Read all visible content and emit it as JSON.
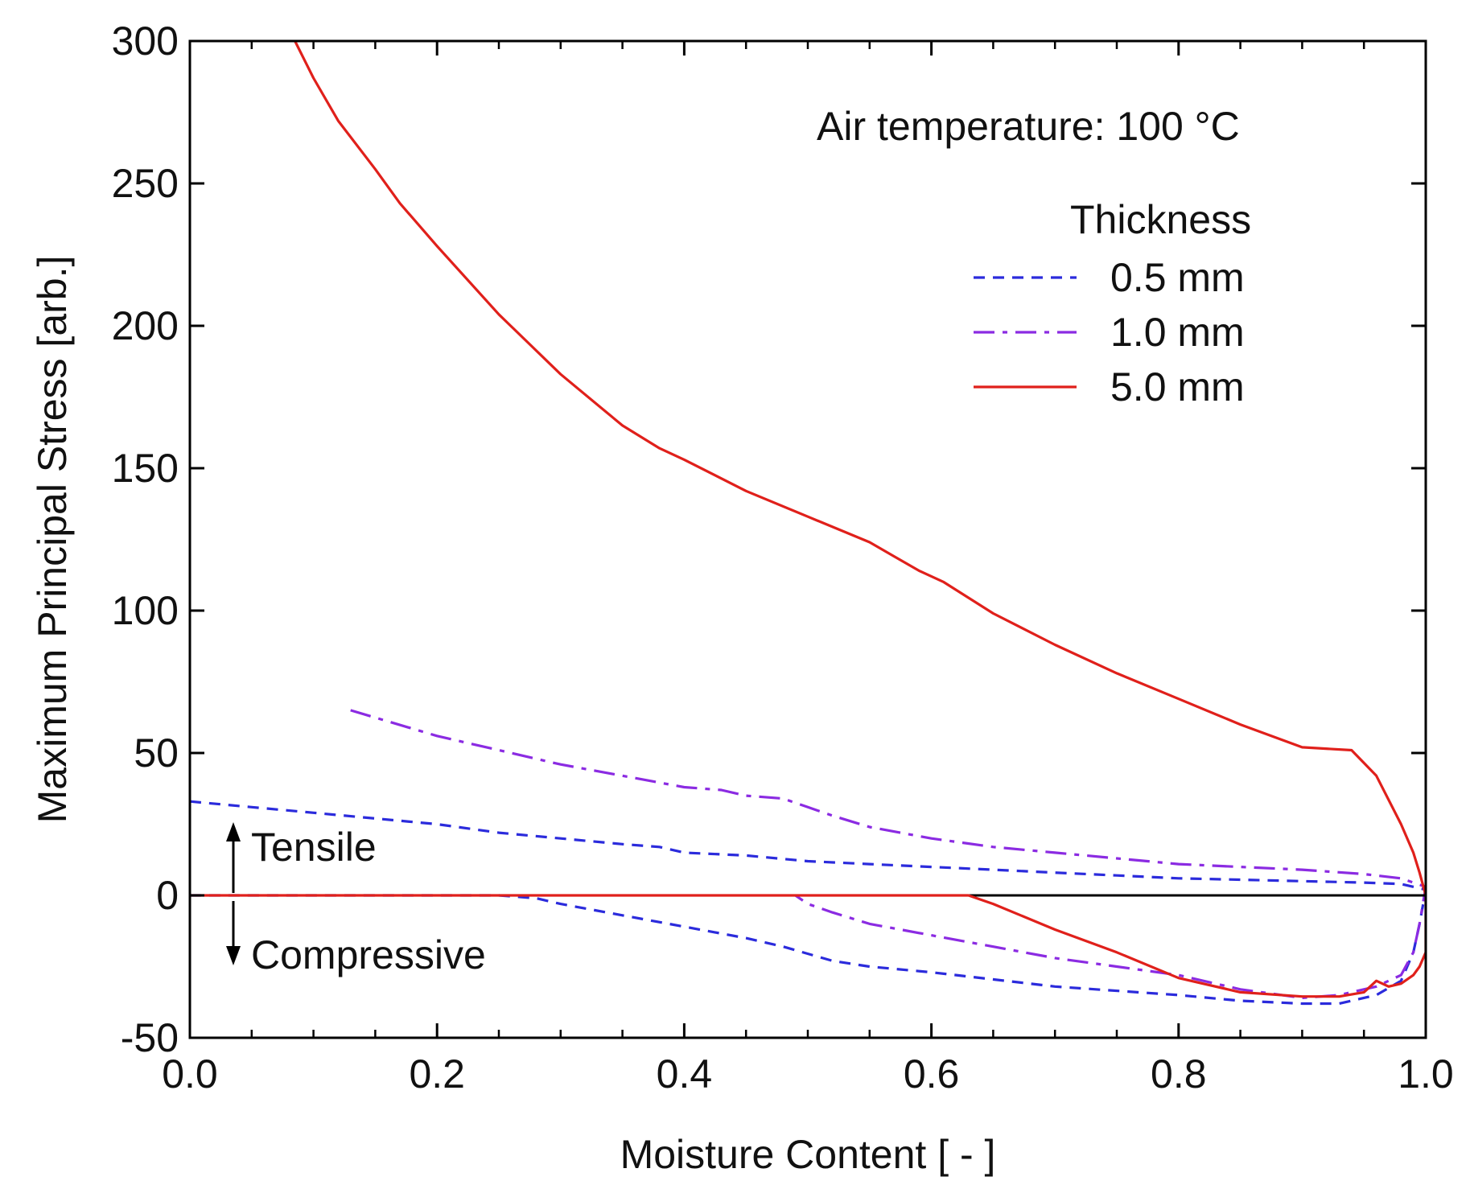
{
  "chart_data": {
    "type": "line",
    "title": "",
    "xlabel": "Moisture Content  [ - ]",
    "ylabel": "Maximum Principal Stress  [arb.]",
    "xlim": [
      0.0,
      1.0
    ],
    "ylim": [
      -50,
      300
    ],
    "xticks": [
      0.0,
      0.2,
      0.4,
      0.6,
      0.8,
      1.0
    ],
    "xtick_labels": [
      "0.0",
      "0.2",
      "0.4",
      "0.6",
      "0.8",
      "1.0"
    ],
    "yticks": [
      -50,
      0,
      50,
      100,
      150,
      200,
      250,
      300
    ],
    "ytick_labels": [
      "-50",
      "0",
      "50",
      "100",
      "150",
      "200",
      "250",
      "300"
    ],
    "grid": false,
    "annotations": {
      "condition": "Air temperature: 100 °C",
      "tensile": "Tensile",
      "compressive": "Compressive"
    },
    "legend": {
      "title": "Thickness",
      "placement": "top-right"
    },
    "series": [
      {
        "name": "0.5 mm",
        "color": "#2b2bdc",
        "dash": "dashed",
        "x": [
          0.0,
          0.05,
          0.1,
          0.15,
          0.2,
          0.25,
          0.3,
          0.35,
          0.38,
          0.4,
          0.45,
          0.5,
          0.55,
          0.6,
          0.65,
          0.7,
          0.75,
          0.8,
          0.85,
          0.9,
          0.95,
          0.98,
          1.0,
          0.995,
          0.99,
          0.98,
          0.96,
          0.93,
          0.9,
          0.85,
          0.8,
          0.7,
          0.6,
          0.55,
          0.52,
          0.48,
          0.45,
          0.4,
          0.35,
          0.3,
          0.28,
          0.25,
          0.2,
          0.1,
          0.0
        ],
        "y": [
          33,
          31,
          29,
          27,
          25,
          22,
          20,
          18,
          17,
          15,
          14,
          12,
          11,
          10,
          9,
          8,
          7,
          6,
          5.5,
          5,
          4.5,
          4,
          2,
          -10,
          -20,
          -30,
          -35,
          -38,
          -38,
          -37,
          -35,
          -32,
          -27,
          -25,
          -23,
          -18,
          -15,
          -11,
          -7,
          -3,
          -1,
          0,
          0,
          0,
          0
        ]
      },
      {
        "name": "1.0 mm",
        "color": "#8b2be2",
        "dash": "dashdot",
        "x": [
          0.13,
          0.2,
          0.25,
          0.3,
          0.35,
          0.4,
          0.43,
          0.45,
          0.48,
          0.5,
          0.52,
          0.55,
          0.6,
          0.65,
          0.7,
          0.75,
          0.8,
          0.85,
          0.9,
          0.95,
          0.98,
          1.0,
          0.995,
          0.99,
          0.98,
          0.96,
          0.93,
          0.9,
          0.85,
          0.8,
          0.75,
          0.7,
          0.65,
          0.6,
          0.55,
          0.52,
          0.5,
          0.49
        ],
        "y": [
          65,
          56,
          51,
          46,
          42,
          38,
          37,
          35,
          34,
          31,
          28,
          24,
          20,
          17,
          15,
          13,
          11,
          10,
          9,
          7.5,
          6,
          3,
          -10,
          -20,
          -28,
          -32,
          -35,
          -36,
          -33,
          -28,
          -25,
          -22,
          -18,
          -14,
          -10,
          -6,
          -3,
          0
        ]
      },
      {
        "name": "5.0 mm",
        "color": "#e0201b",
        "dash": "solid",
        "x": [
          0.085,
          0.1,
          0.12,
          0.15,
          0.17,
          0.2,
          0.25,
          0.3,
          0.35,
          0.38,
          0.4,
          0.45,
          0.5,
          0.55,
          0.57,
          0.59,
          0.61,
          0.65,
          0.7,
          0.75,
          0.8,
          0.85,
          0.9,
          0.94,
          0.96,
          0.98,
          0.99,
          0.995,
          1.0,
          1.0,
          0.995,
          0.99,
          0.98,
          0.97,
          0.96,
          0.95,
          0.93,
          0.9,
          0.85,
          0.8,
          0.75,
          0.7,
          0.65,
          0.63,
          0.6,
          0.5,
          0.4,
          0.3,
          0.2,
          0.1,
          0.0
        ],
        "y": [
          300,
          287,
          272,
          255,
          243,
          228,
          204,
          183,
          165,
          157,
          153,
          142,
          133,
          124,
          119,
          114,
          110,
          99,
          88,
          78,
          69,
          60,
          52,
          51,
          42,
          25,
          15,
          8,
          0,
          -20,
          -25,
          -28,
          -31,
          -32,
          -30,
          -34,
          -35.5,
          -35.5,
          -34,
          -29,
          -20,
          -12,
          -3,
          0,
          0,
          0,
          0,
          0,
          0,
          0,
          0
        ]
      }
    ]
  }
}
